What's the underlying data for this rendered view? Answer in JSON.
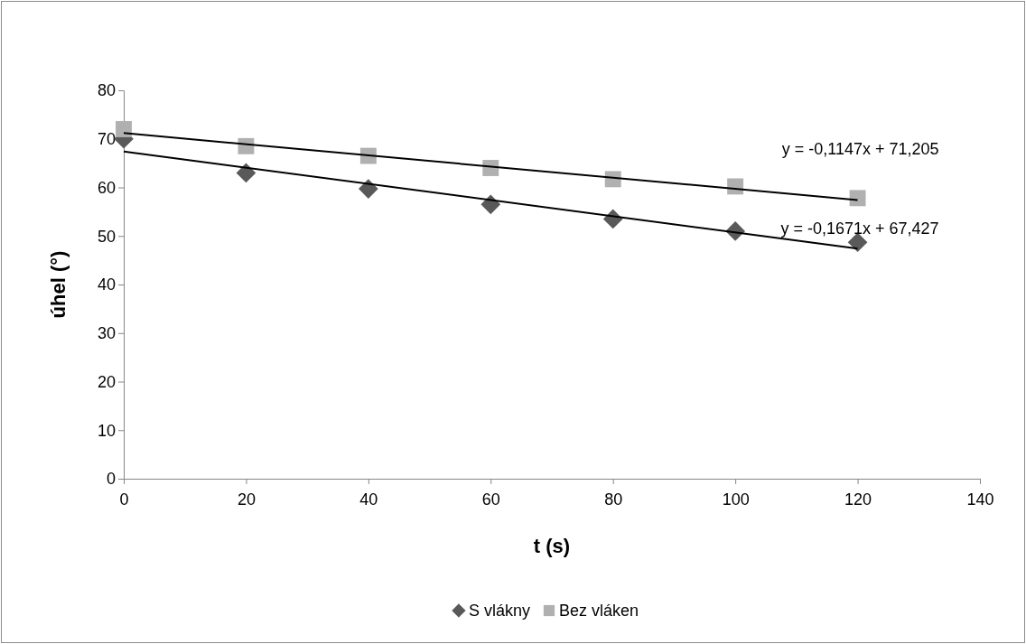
{
  "chart_data": {
    "type": "scatter",
    "xlabel": "t (s)",
    "ylabel": "úhel (°)",
    "xlim": [
      0,
      140
    ],
    "xticks": [
      0,
      20,
      40,
      60,
      80,
      100,
      120,
      140
    ],
    "ylim": [
      0,
      80
    ],
    "yticks": [
      0,
      10,
      20,
      30,
      40,
      50,
      60,
      70,
      80
    ],
    "grid": false,
    "legend": "bottom",
    "series": [
      {
        "name": "S vlákny",
        "marker": "diamond",
        "color": "#595959",
        "x": [
          0,
          20,
          40,
          60,
          80,
          100,
          120
        ],
        "values": [
          70,
          63,
          59.7,
          56.5,
          53.5,
          51,
          48.7
        ]
      },
      {
        "name": "Bez vláken",
        "marker": "square",
        "color": "#b0b0b0",
        "x": [
          0,
          20,
          40,
          60,
          80,
          100,
          120
        ],
        "values": [
          72,
          68.5,
          66.5,
          64,
          61.7,
          60.2,
          57.8
        ]
      },
      {
        "type": "line",
        "marker": "none",
        "line_style": "solid",
        "color": "#000000",
        "x": [
          0,
          120
        ],
        "values": [
          71.2,
          57.4
        ]
      },
      {
        "type": "line",
        "marker": "none",
        "line_style": "solid",
        "color": "#000000",
        "x": [
          0,
          120
        ],
        "values": [
          67.4,
          47.4
        ]
      }
    ],
    "annotations": [
      {
        "text": "y = -0,1147x + 71,205",
        "x": 120,
        "y": 57.4
      },
      {
        "text": "y = -0,1671x + 67,427",
        "x": 120,
        "y": 47.4
      }
    ]
  }
}
